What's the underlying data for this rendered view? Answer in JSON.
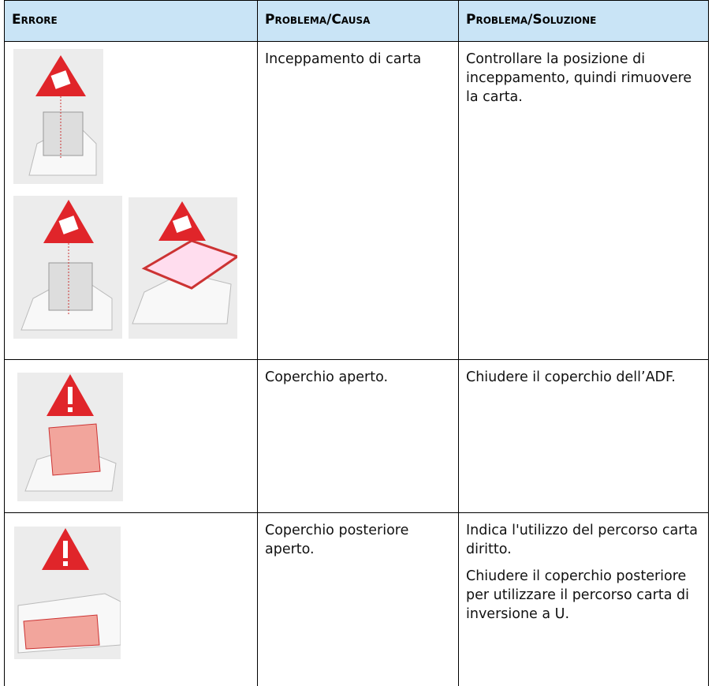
{
  "table": {
    "header": [
      "Errore",
      "Problema/Causa",
      "Problema/Soluzione"
    ],
    "rows": [
      {
        "cause": "Inceppamento di carta",
        "solution": [
          "Controllare la posizione di inceppamento, quindi rimuovere la carta."
        ]
      },
      {
        "cause": "Coperchio aperto.",
        "solution": [
          "Chiudere il coperchio dell’ADF."
        ]
      },
      {
        "cause": "Coperchio posteriore aperto.",
        "solution": [
          "Indica l'utilizzo del percorso carta diritto.",
          "Chiudere il coperchio posteriore per utilizzare il percorso carta di inversione a U."
        ]
      }
    ]
  }
}
